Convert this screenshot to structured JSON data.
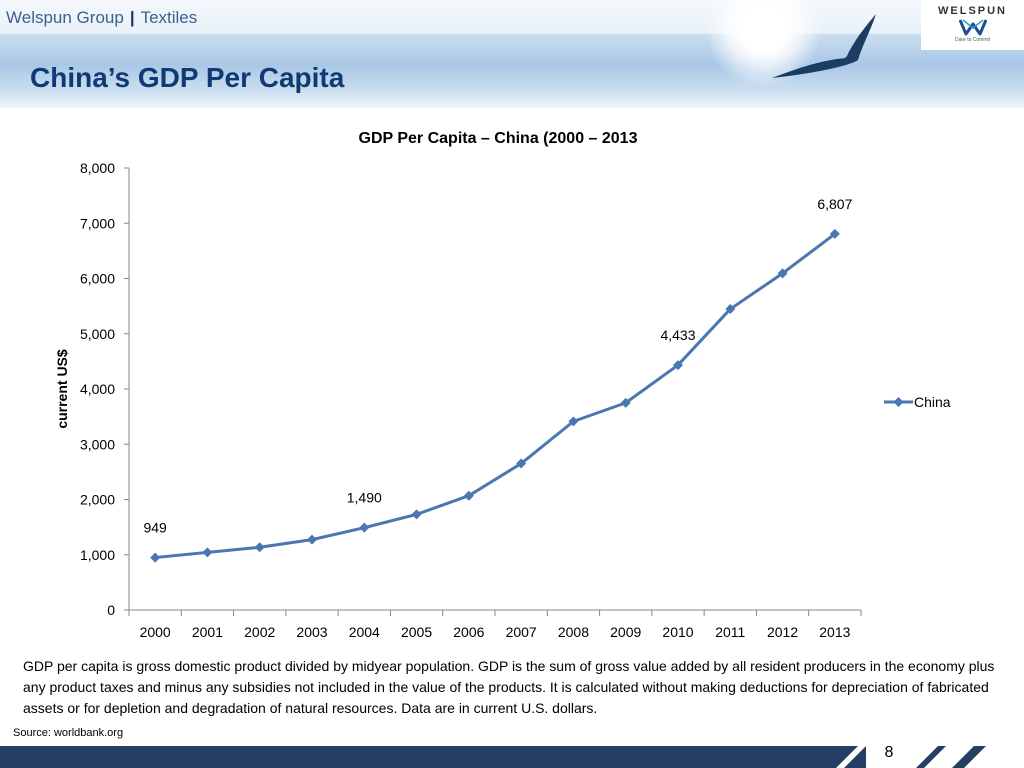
{
  "header": {
    "company": "Welspun Group",
    "separator": "|",
    "division": "Textiles",
    "slide_title": "China’s GDP Per Capita",
    "logo": {
      "name": "WELSPUN",
      "tagline": "Dare to Commit"
    }
  },
  "chart_data": {
    "type": "line",
    "title": "GDP Per Capita – China (2000 – 2013",
    "xlabel": "",
    "ylabel": "current US$",
    "categories": [
      "2000",
      "2001",
      "2002",
      "2003",
      "2004",
      "2005",
      "2006",
      "2007",
      "2008",
      "2009",
      "2010",
      "2011",
      "2012",
      "2013"
    ],
    "series": [
      {
        "name": "China",
        "values": [
          949,
          1042,
          1135,
          1274,
          1490,
          1731,
          2069,
          2651,
          3414,
          3749,
          4433,
          5447,
          6093,
          6807
        ]
      }
    ],
    "ylim": [
      0,
      8000
    ],
    "yticks": [
      0,
      1000,
      2000,
      3000,
      4000,
      5000,
      6000,
      7000,
      8000
    ],
    "ytick_labels": [
      "0",
      "1,000",
      "2,000",
      "3,000",
      "4,000",
      "5,000",
      "6,000",
      "7,000",
      "8,000"
    ],
    "data_labels": [
      {
        "category": "2000",
        "text": "949"
      },
      {
        "category": "2004",
        "text": "1,490"
      },
      {
        "category": "2010",
        "text": "4,433"
      },
      {
        "category": "2013",
        "text": "6,807"
      }
    ],
    "grid": false,
    "legend": "right",
    "colors": {
      "series": "#4a76b2"
    }
  },
  "description": "GDP per capita is gross domestic product divided by midyear population. GDP is the sum of gross value added by all resident producers in the economy plus any product taxes and minus any subsidies not included in the value of the products. It is calculated without making deductions for depreciation of fabricated assets or for depletion and degradation of natural resources. Data are in current U.S. dollars.",
  "source": "Source: worldbank.org",
  "page_number": "8",
  "colors": {
    "title": "#0f3a74",
    "footer": "#243f63"
  }
}
